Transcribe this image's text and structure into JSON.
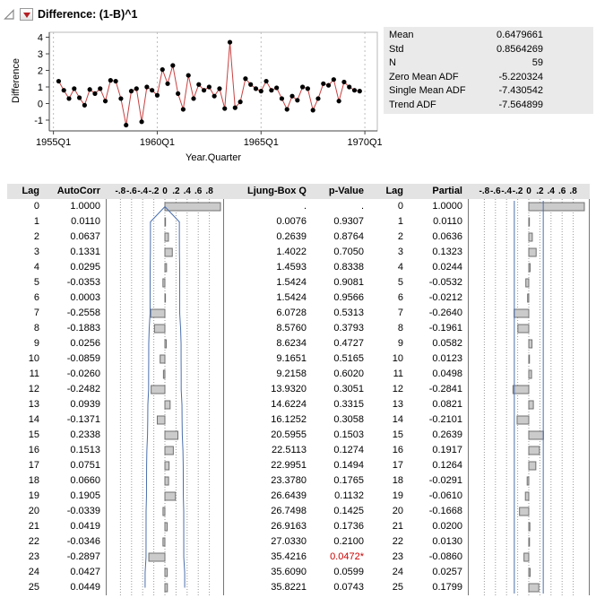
{
  "header": {
    "title": "Difference: (1-B)^1"
  },
  "colors": {
    "series_line": "#c94040",
    "marker": "#000000",
    "bar_fill": "#cbcbcb",
    "bar_border": "#707070",
    "conf_line": "#4a6fae",
    "sig_pvalue": "#cc0000",
    "grid_dash": "#bdbdbd",
    "plot_edge": "#777777",
    "axis": "#444444",
    "header_bg": "#e3e3e3",
    "panel_bg": "#eaeaea"
  },
  "stats": {
    "rows": [
      [
        "Mean",
        "0.6479661"
      ],
      [
        "Std",
        "0.8564269"
      ],
      [
        "N",
        "59"
      ],
      [
        "Zero Mean ADF",
        "-5.220324"
      ],
      [
        "Single Mean ADF",
        "-7.430542"
      ],
      [
        "Trend ADF",
        "-7.564899"
      ]
    ]
  },
  "chart_data": [
    {
      "type": "line",
      "title": "Difference time series",
      "xlabel": "Year.Quarter",
      "ylabel": "Difference",
      "x_ticks": [
        1955,
        1960,
        1965,
        1970
      ],
      "x_tick_labels": [
        "1955Q1",
        "1960Q1",
        "1965Q1",
        "1970Q1"
      ],
      "y_ticks": [
        4,
        3,
        2,
        1,
        0,
        -1
      ],
      "xlim": [
        1954.8,
        1970.6
      ],
      "ylim": [
        -1.65,
        4.3
      ],
      "x_start": 1955.25,
      "x_step": 0.25,
      "values": [
        1.35,
        0.8,
        0.3,
        0.9,
        0.35,
        -0.1,
        0.85,
        0.6,
        0.9,
        0.15,
        1.4,
        1.35,
        0.3,
        -1.3,
        0.75,
        0.9,
        -1.1,
        1.0,
        0.8,
        0.5,
        2.05,
        1.2,
        2.3,
        0.6,
        -0.35,
        1.7,
        0.3,
        1.15,
        0.8,
        1.0,
        0.45,
        0.9,
        -0.3,
        3.7,
        -0.25,
        0.1,
        1.5,
        1.15,
        0.9,
        0.75,
        1.35,
        0.8,
        0.95,
        0.3,
        -0.35,
        0.45,
        0.2,
        1.0,
        0.9,
        -0.4,
        0.3,
        1.2,
        1.1,
        1.45,
        0.15,
        1.3,
        1.0,
        0.8,
        0.75
      ],
      "grid": "vertical-dotted",
      "legend": "none"
    },
    {
      "type": "bar",
      "name": "AutoCorr",
      "orientation": "horizontal",
      "xlim": [
        -1,
        1
      ],
      "ticks": [
        -0.8,
        -0.6,
        -0.4,
        -0.2,
        0,
        0.2,
        0.4,
        0.6,
        0.8
      ],
      "n": 59,
      "values": [
        1.0,
        0.011,
        0.0637,
        0.1331,
        0.0295,
        -0.0353,
        0.0003,
        -0.2558,
        -0.1883,
        0.0256,
        -0.0859,
        -0.026,
        -0.2482,
        0.0939,
        -0.1371,
        0.2338,
        0.1513,
        0.0751,
        0.066,
        0.1905,
        -0.0339,
        0.0419,
        -0.0346,
        -0.2897,
        0.0427,
        0.0449
      ]
    },
    {
      "type": "bar",
      "name": "Partial",
      "orientation": "horizontal",
      "xlim": [
        -1,
        1
      ],
      "ticks": [
        -0.8,
        -0.6,
        -0.4,
        -0.2,
        0,
        0.2,
        0.4,
        0.6,
        0.8
      ],
      "conf": 0.2604,
      "values": [
        1.0,
        0.011,
        0.0636,
        0.1323,
        0.0244,
        -0.0532,
        -0.0212,
        -0.264,
        -0.1961,
        0.0582,
        0.0123,
        0.0498,
        -0.2841,
        0.0821,
        -0.2101,
        0.2639,
        0.1917,
        0.1264,
        -0.0291,
        -0.061,
        -0.1668,
        0.02,
        0.013,
        -0.086,
        0.0257,
        0.1799
      ]
    }
  ],
  "table": {
    "headers": {
      "lag": "Lag",
      "autocorr": "AutoCorr",
      "ljung": "Ljung-Box Q",
      "pvalue": "p-Value",
      "lag2": "Lag",
      "partial": "Partial"
    },
    "axis_ticks": [
      "-.8",
      "-.6",
      "-.4",
      "-.2",
      "0",
      ".2",
      ".4",
      ".6",
      ".8"
    ],
    "rows": [
      [
        0,
        "1.0000",
        ".",
        ".",
        "1.0000"
      ],
      [
        1,
        "0.0110",
        "0.0076",
        "0.9307",
        "0.0110"
      ],
      [
        2,
        "0.0637",
        "0.2639",
        "0.8764",
        "0.0636"
      ],
      [
        3,
        "0.1331",
        "1.4022",
        "0.7050",
        "0.1323"
      ],
      [
        4,
        "0.0295",
        "1.4593",
        "0.8338",
        "0.0244"
      ],
      [
        5,
        "-0.0353",
        "1.5424",
        "0.9081",
        "-0.0532"
      ],
      [
        6,
        "0.0003",
        "1.5424",
        "0.9566",
        "-0.0212"
      ],
      [
        7,
        "-0.2558",
        "6.0728",
        "0.5313",
        "-0.2640"
      ],
      [
        8,
        "-0.1883",
        "8.5760",
        "0.3793",
        "-0.1961"
      ],
      [
        9,
        "0.0256",
        "8.6234",
        "0.4727",
        "0.0582"
      ],
      [
        10,
        "-0.0859",
        "9.1651",
        "0.5165",
        "0.0123"
      ],
      [
        11,
        "-0.0260",
        "9.2158",
        "0.6020",
        "0.0498"
      ],
      [
        12,
        "-0.2482",
        "13.9320",
        "0.3051",
        "-0.2841"
      ],
      [
        13,
        "0.0939",
        "14.6224",
        "0.3315",
        "0.0821"
      ],
      [
        14,
        "-0.1371",
        "16.1252",
        "0.3058",
        "-0.2101"
      ],
      [
        15,
        "0.2338",
        "20.5955",
        "0.1503",
        "0.2639"
      ],
      [
        16,
        "0.1513",
        "22.5113",
        "0.1274",
        "0.1917"
      ],
      [
        17,
        "0.0751",
        "22.9951",
        "0.1494",
        "0.1264"
      ],
      [
        18,
        "0.0660",
        "23.3780",
        "0.1765",
        "-0.0291"
      ],
      [
        19,
        "0.1905",
        "26.6439",
        "0.1132",
        "-0.0610"
      ],
      [
        20,
        "-0.0339",
        "26.7498",
        "0.1425",
        "-0.1668"
      ],
      [
        21,
        "0.0419",
        "26.9163",
        "0.1736",
        "0.0200"
      ],
      [
        22,
        "-0.0346",
        "27.0330",
        "0.2100",
        "0.0130"
      ],
      [
        23,
        "-0.2897",
        "35.4216",
        "0.0472*",
        "-0.0860"
      ],
      [
        24,
        "0.0427",
        "35.6090",
        "0.0599",
        "0.0257"
      ],
      [
        25,
        "0.0449",
        "35.8221",
        "0.0743",
        "0.1799"
      ]
    ]
  }
}
